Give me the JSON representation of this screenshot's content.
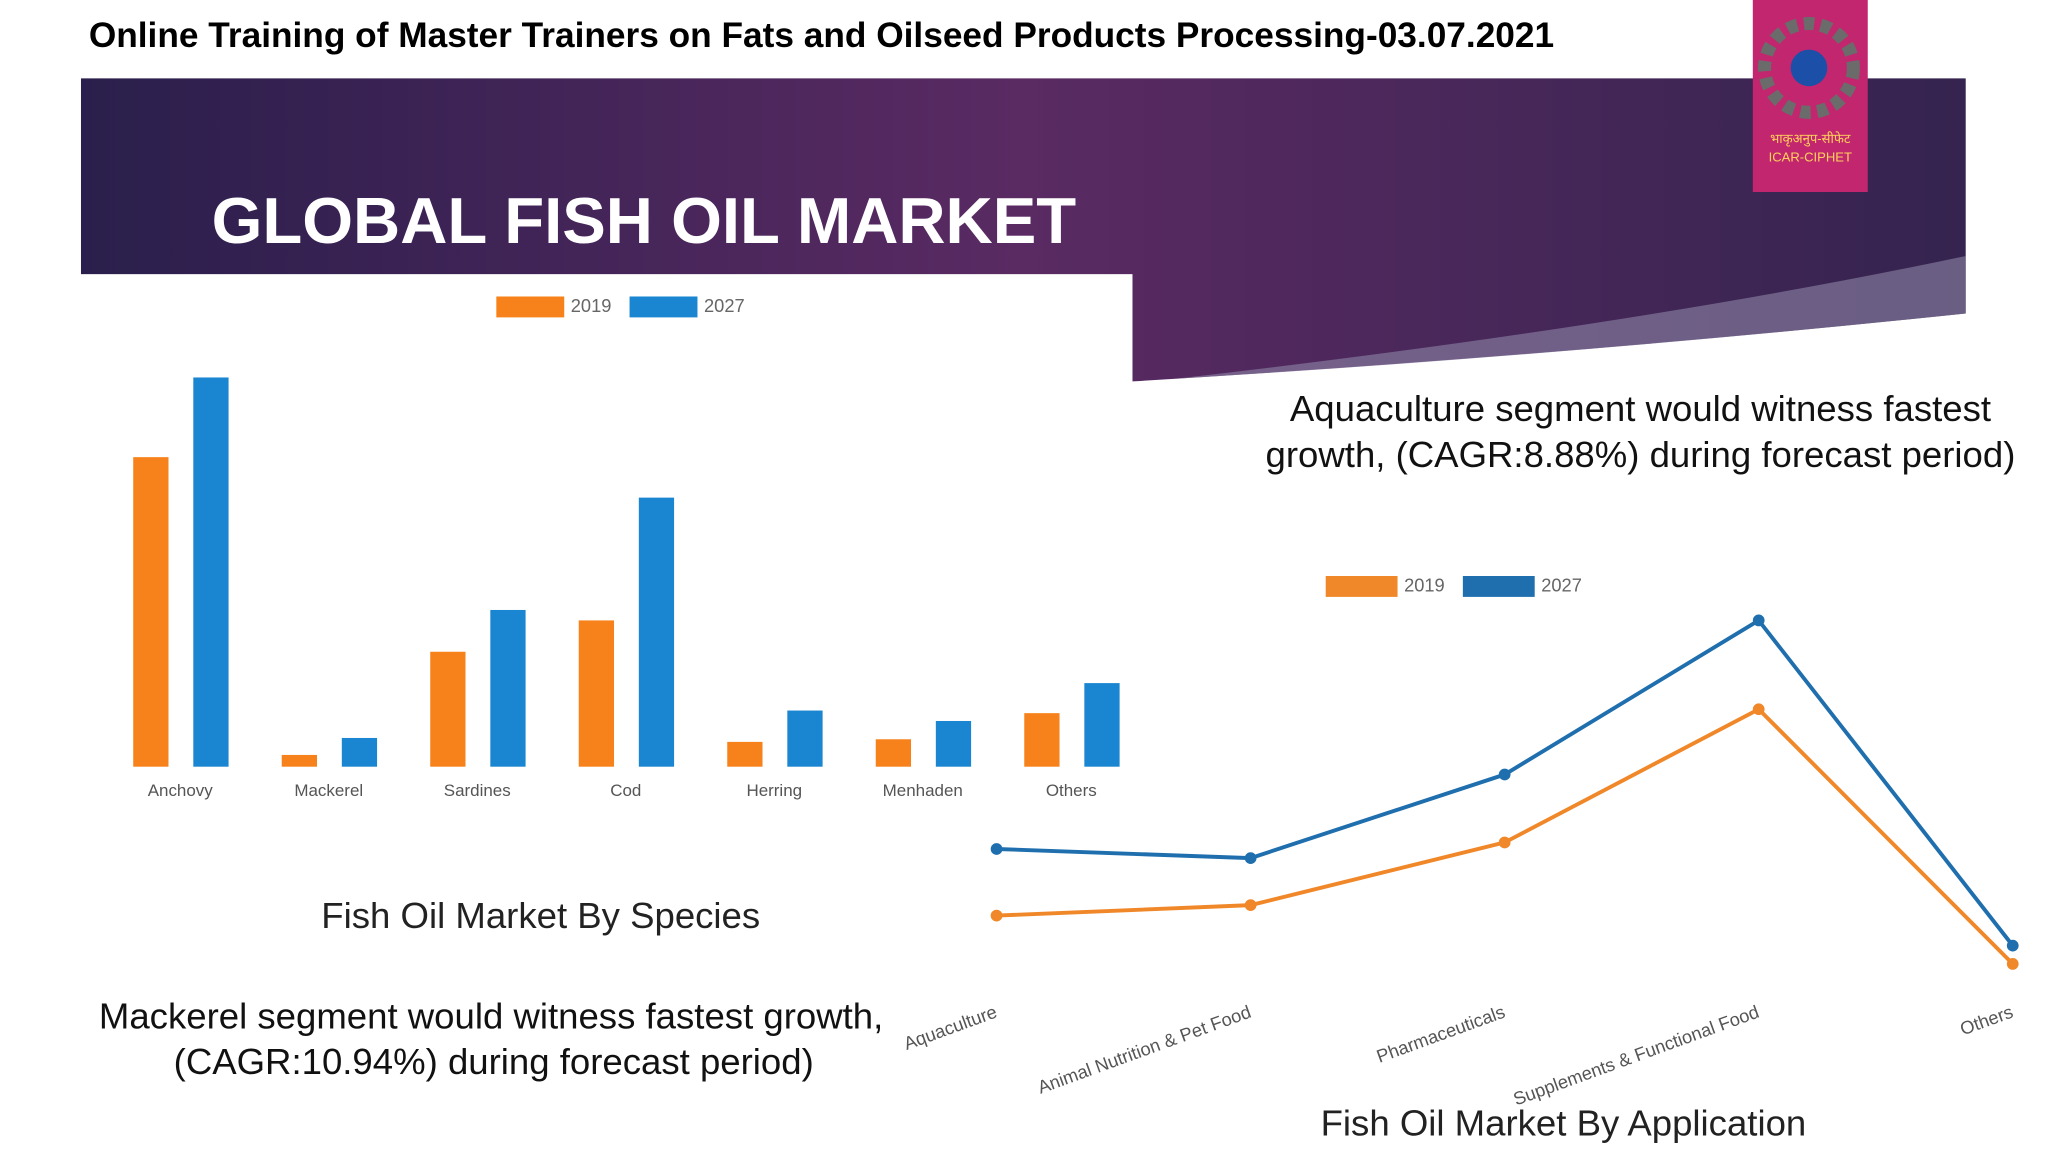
{
  "header": {
    "title": "Online Training of Master Trainers on Fats and Oilseed Products Processing-03.07.2021"
  },
  "logo": {
    "line1": "भाकृअनुप-सीफेट",
    "line2": "ICAR-CIPHET"
  },
  "slide": {
    "title": "GLOBAL FISH OIL MARKET"
  },
  "captions": {
    "species": "Fish Oil Market By Species",
    "application": "Fish Oil Market By Application"
  },
  "notes": {
    "aquaculture": [
      "Aquaculture segment would witness fastest",
      "growth, (CAGR:8.88%) during forecast period)"
    ],
    "mackerel": [
      "Mackerel segment would witness fastest growth,",
      "(CAGR:10.94%) during forecast period)"
    ]
  },
  "chart_data": [
    {
      "type": "bar",
      "categories": [
        "Anchovy",
        "Mackerel",
        "Sardines",
        "Cod",
        "Herring",
        "Menhaden",
        "Others"
      ],
      "series": [
        {
          "name": "2019",
          "color": "#f7821b",
          "values": [
            237,
            9,
            88,
            112,
            19,
            21,
            41
          ]
        },
        {
          "name": "2027",
          "color": "#1a85d0",
          "values": [
            298,
            22,
            120,
            206,
            43,
            35,
            64
          ]
        }
      ],
      "ylim": [
        0,
        310
      ],
      "legend": "top"
    },
    {
      "type": "line",
      "categories": [
        "Aquaculture",
        "Animal Nutrition & Pet Food",
        "Pharmaceuticals",
        "Supplements & Functional Food",
        "Others"
      ],
      "series": [
        {
          "name": "2019",
          "color": "#f0882a",
          "values": [
            59,
            67,
            115,
            217,
            22
          ]
        },
        {
          "name": "2027",
          "color": "#1f6fae",
          "values": [
            110,
            103,
            167,
            285,
            36
          ]
        }
      ],
      "ylim": [
        0,
        300
      ],
      "legend": "top"
    }
  ]
}
